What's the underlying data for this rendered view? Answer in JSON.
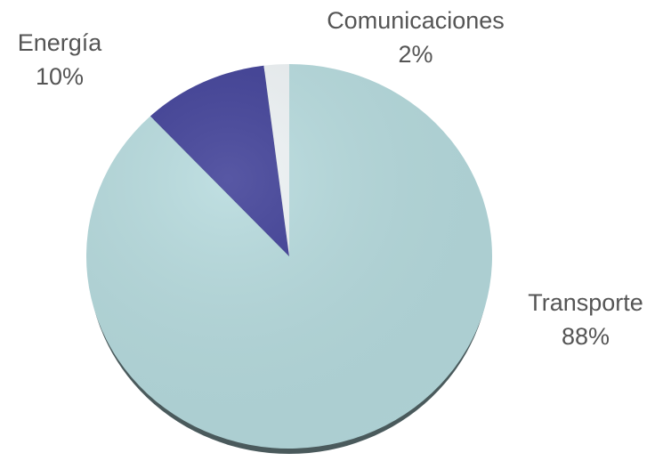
{
  "chart_data": {
    "type": "pie",
    "categories": [
      "Transporte",
      "Energía",
      "Comunicaciones"
    ],
    "values": [
      88,
      10,
      2
    ],
    "value_labels": [
      "88%",
      "10%",
      "2%"
    ],
    "colors": [
      "#b5dadd",
      "#3a3a94",
      "#eef3f5"
    ]
  }
}
